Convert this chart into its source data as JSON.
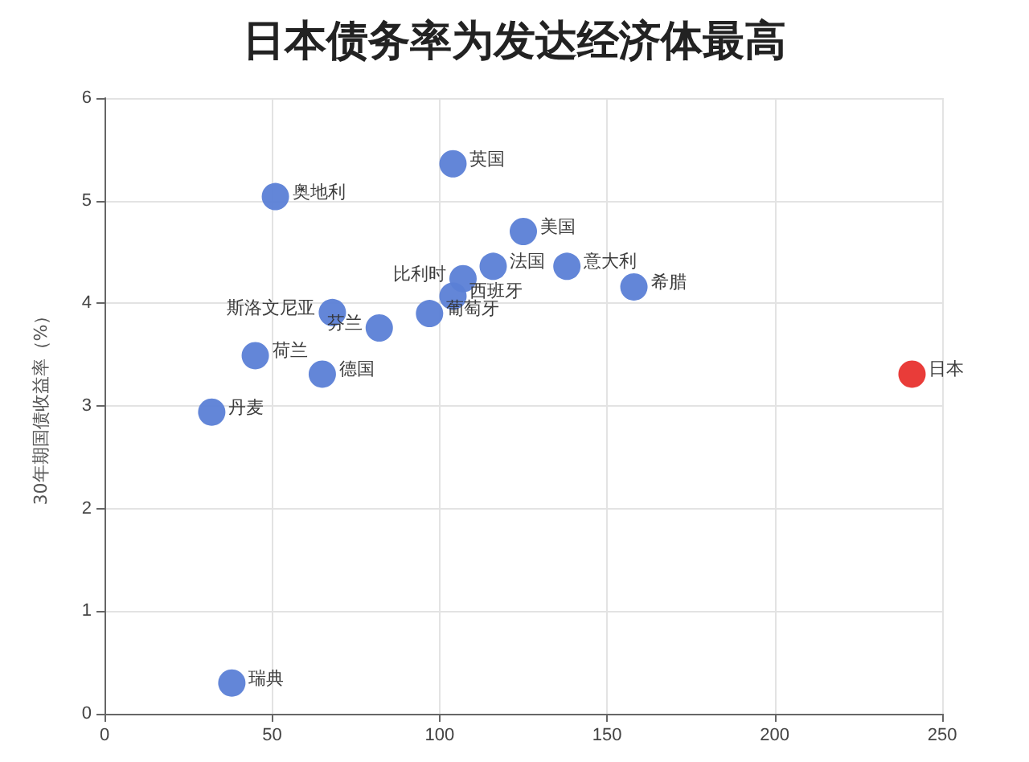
{
  "chart_data": {
    "type": "scatter",
    "title": "日本债务率为发达经济体最高",
    "ylabel": "30年期国债收益率（%）",
    "xlim": [
      0,
      250
    ],
    "xticks": [
      0,
      50,
      100,
      150,
      200,
      250
    ],
    "ylim": [
      0,
      6
    ],
    "yticks": [
      0,
      1,
      2,
      3,
      4,
      5,
      6
    ],
    "grid": true,
    "legend": false,
    "marker": "circle",
    "series": [
      {
        "name": "奥地利",
        "color": "#5b7fd6",
        "x": [
          51
        ],
        "values": [
          5.04
        ]
      },
      {
        "name": "英国",
        "color": "#5b7fd6",
        "x": [
          104
        ],
        "values": [
          5.36
        ]
      },
      {
        "name": "美国",
        "color": "#5b7fd6",
        "x": [
          125
        ],
        "values": [
          4.7
        ]
      },
      {
        "name": "法国",
        "color": "#5b7fd6",
        "x": [
          116
        ],
        "values": [
          4.36
        ]
      },
      {
        "name": "比利时",
        "color": "#5b7fd6",
        "x": [
          107
        ],
        "values": [
          4.24
        ]
      },
      {
        "name": "西班牙",
        "color": "#5b7fd6",
        "x": [
          104
        ],
        "values": [
          4.07
        ]
      },
      {
        "name": "葡萄牙",
        "color": "#5b7fd6",
        "x": [
          97
        ],
        "values": [
          3.9
        ]
      },
      {
        "name": "意大利",
        "color": "#5b7fd6",
        "x": [
          138
        ],
        "values": [
          4.36
        ]
      },
      {
        "name": "希腊",
        "color": "#5b7fd6",
        "x": [
          158
        ],
        "values": [
          4.16
        ]
      },
      {
        "name": "日本",
        "color": "#e8322e",
        "x": [
          241
        ],
        "values": [
          3.31
        ]
      },
      {
        "name": "斯洛文尼亚",
        "color": "#5b7fd6",
        "x": [
          68
        ],
        "values": [
          3.91
        ]
      },
      {
        "name": "芬兰",
        "color": "#5b7fd6",
        "x": [
          82
        ],
        "values": [
          3.76
        ]
      },
      {
        "name": "荷兰",
        "color": "#5b7fd6",
        "x": [
          45
        ],
        "values": [
          3.49
        ]
      },
      {
        "name": "德国",
        "color": "#5b7fd6",
        "x": [
          65
        ],
        "values": [
          3.31
        ]
      },
      {
        "name": "丹麦",
        "color": "#5b7fd6",
        "x": [
          32
        ],
        "values": [
          2.94
        ]
      },
      {
        "name": "瑞典",
        "color": "#5b7fd6",
        "x": [
          38
        ],
        "values": [
          0.3
        ]
      }
    ]
  }
}
